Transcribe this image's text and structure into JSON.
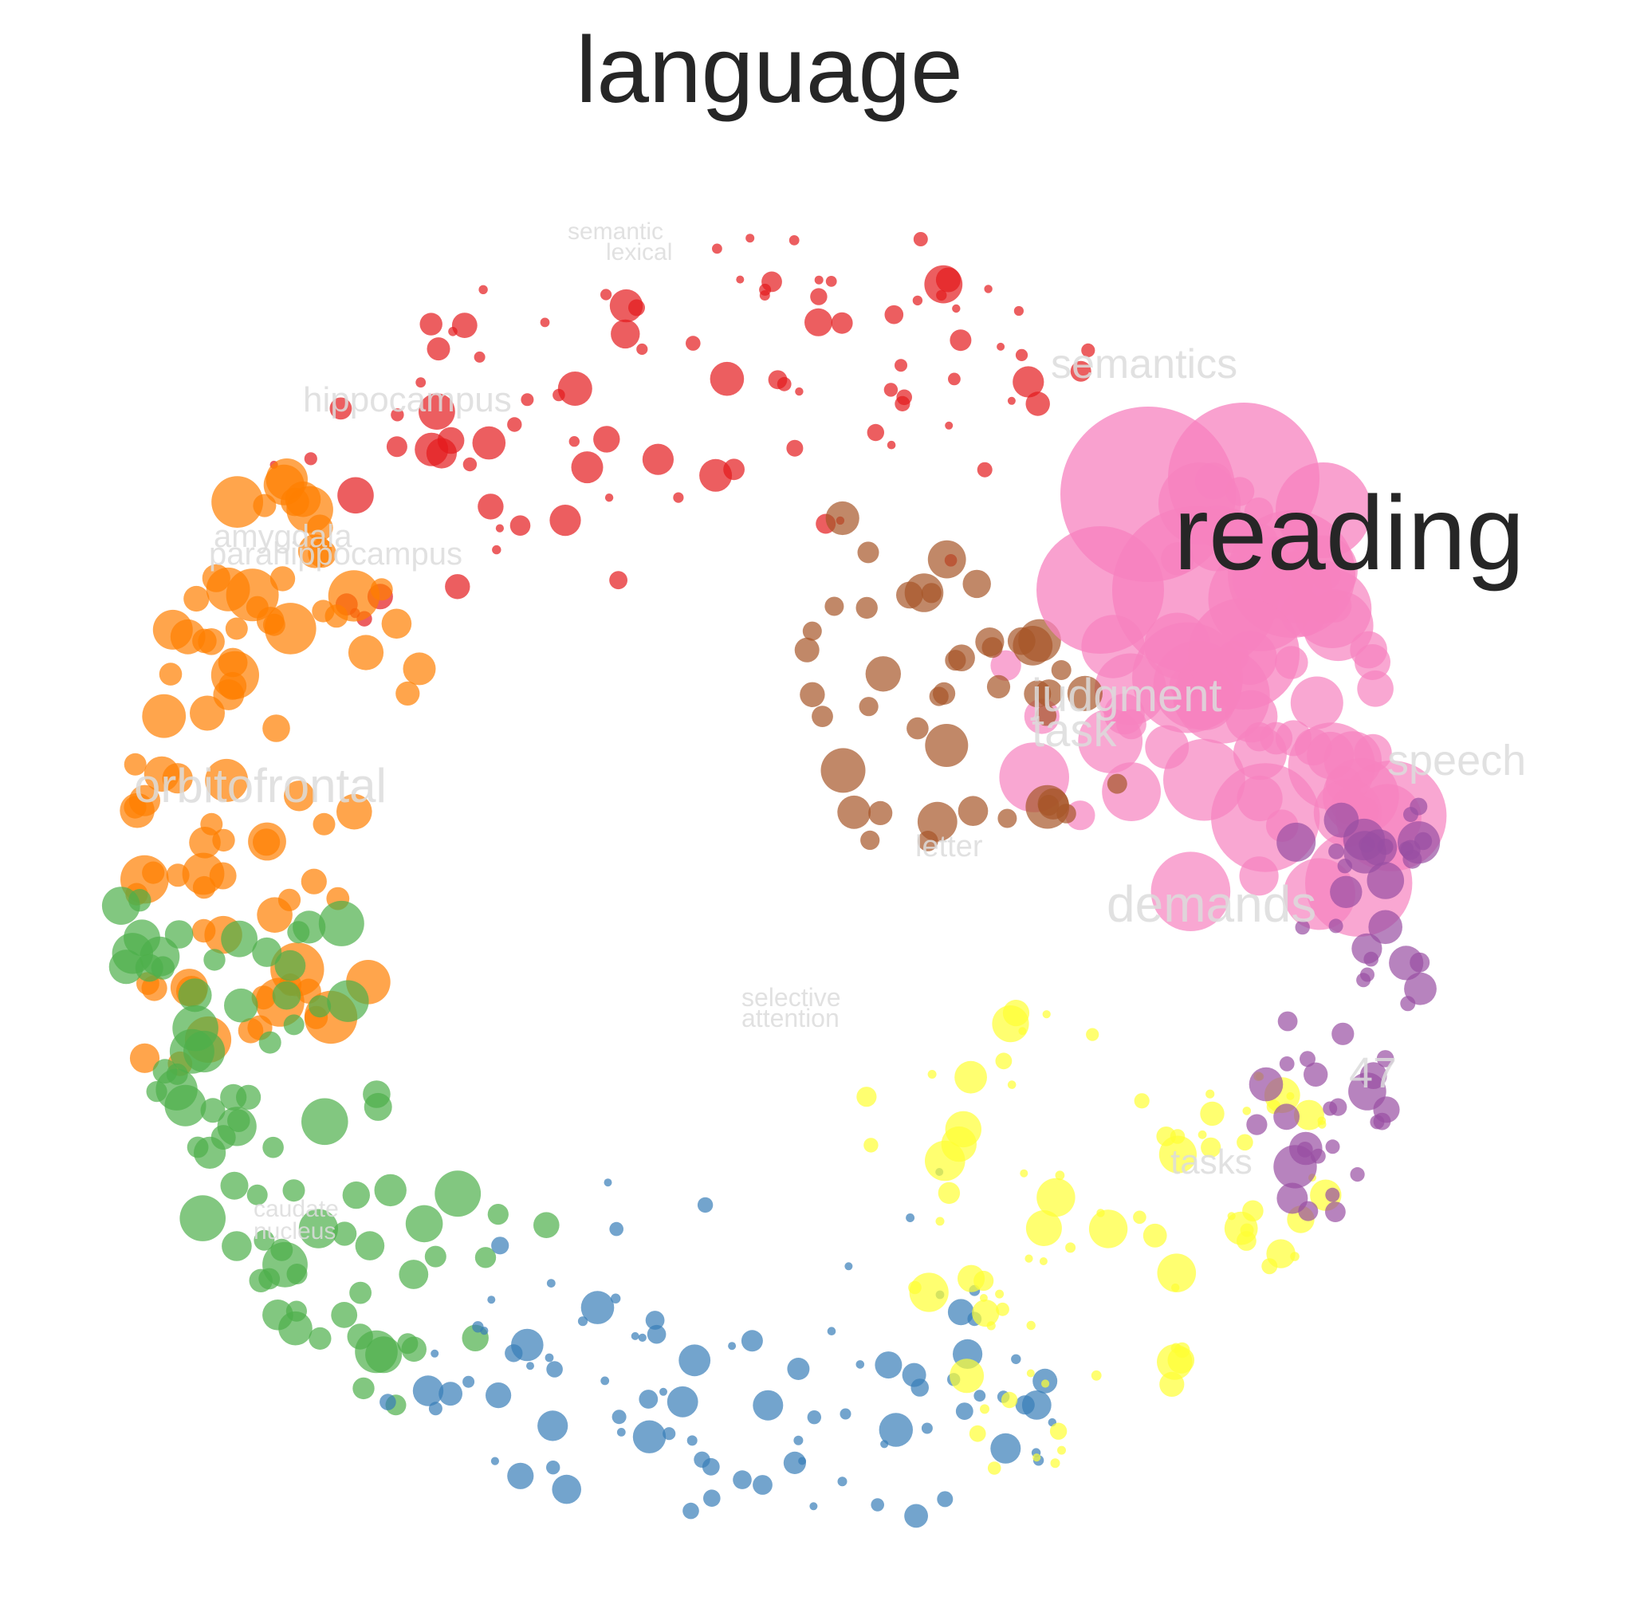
{
  "chart_data": {
    "type": "scatter",
    "title": "language",
    "xlabel": "",
    "ylabel": "",
    "grid": false,
    "legend": "none",
    "highlight_label": "reading",
    "palette": {
      "red": "#e41a1c",
      "orange": "#ff7f00",
      "green": "#4daf4a",
      "blue": "#377eb8",
      "yellow": "#ffff33",
      "pink": "#f781bf",
      "purple": "#984ea3",
      "brown": "#a65628"
    },
    "term_labels": [
      "semantics",
      "hippocampus",
      "amygdala",
      "parahippocampus",
      "orbitofrontal",
      "judgment",
      "task",
      "speech",
      "letter",
      "demands",
      "selective",
      "attention",
      "tasks",
      "47",
      "caudate",
      "nucleus",
      "semantic",
      "lexical"
    ],
    "clusters": [
      {
        "name": "red",
        "count": 95
      },
      {
        "name": "orange",
        "count": 85
      },
      {
        "name": "green",
        "count": 80
      },
      {
        "name": "blue",
        "count": 90
      },
      {
        "name": "yellow",
        "count": 85
      },
      {
        "name": "pink",
        "count": 70
      },
      {
        "name": "purple",
        "count": 55
      },
      {
        "name": "brown",
        "count": 45
      }
    ]
  }
}
